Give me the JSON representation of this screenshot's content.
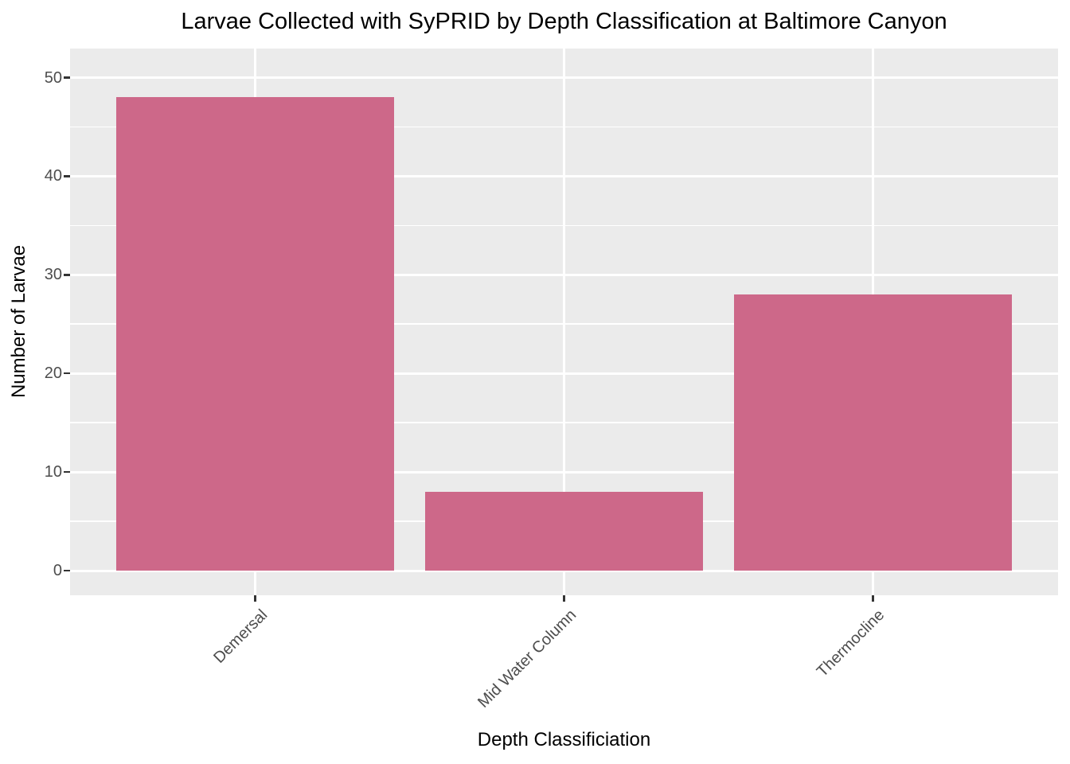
{
  "chart_data": {
    "type": "bar",
    "title": "Larvae Collected with SyPRID by Depth Classification at Baltimore Canyon",
    "xlabel": "Depth Classificiation",
    "ylabel": "Number of Larvae",
    "categories": [
      "Demersal",
      "Mid Water Column",
      "Thermocline"
    ],
    "values": [
      48,
      8,
      28
    ],
    "ylim": [
      0,
      50
    ],
    "yticks": [
      0,
      10,
      20,
      30,
      40,
      50
    ],
    "yticks_minor": [
      5,
      15,
      25,
      35,
      45
    ],
    "x_tick_angle_deg": 45,
    "grid": true,
    "legend": false,
    "bar_color": "#CD6889",
    "panel_background": "#EBEBEB",
    "gridline_color": "#FFFFFF",
    "tick_label_color": "#4D4D4D",
    "tick_mark_color": "#333333",
    "figure_background": "#FFFFFF"
  }
}
